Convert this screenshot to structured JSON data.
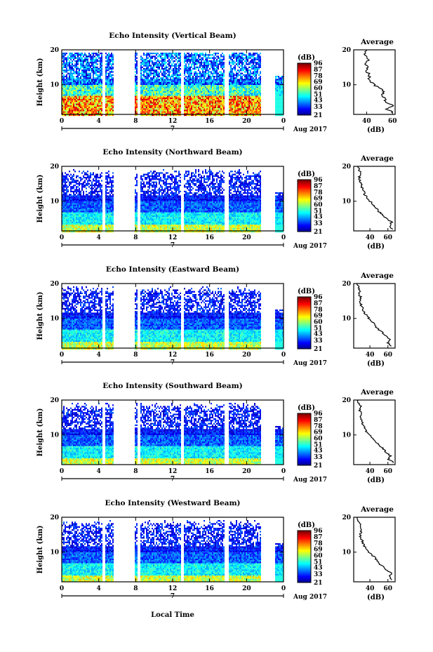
{
  "chart_data": {
    "type": "heatmap",
    "xlabel": "Local Time",
    "date_label": "Aug 2017",
    "day_marker": "7",
    "x_ticks": [
      "0",
      "4",
      "8",
      "12",
      "16",
      "20",
      "0"
    ],
    "xlim": [
      0,
      24
    ],
    "ylabel": "Height (km)",
    "y_ticks": [
      "10",
      "20"
    ],
    "ylim": [
      1.5,
      20
    ],
    "colorbar": {
      "unit_label": "(dB)",
      "ticks": [
        "96",
        "87",
        "78",
        "69",
        "60",
        "51",
        "43",
        "33",
        "21"
      ],
      "tick_values": [
        96,
        87,
        78,
        69,
        60,
        51,
        43,
        33,
        21
      ],
      "range": [
        21,
        96
      ],
      "colormap": "jet"
    },
    "data_gaps_hours": [
      [
        4.3,
        4.6
      ],
      [
        5.6,
        7.8
      ],
      [
        8.2,
        8.5
      ],
      [
        12.8,
        13.1
      ],
      [
        17.5,
        18.0
      ],
      [
        21.5,
        23.0
      ]
    ],
    "profile_title": "Average",
    "profile_xlabel": "(dB)",
    "panels": [
      {
        "title": "Echo Intensity (Vertical Beam)",
        "profile_x_ticks": [
          "40",
          "60"
        ],
        "profile_xlim": [
          30,
          62
        ],
        "profile_x_tick_values": [
          40,
          60
        ],
        "profile_y_ticks": [
          "10",
          "20"
        ],
        "profile": {
          "heights_km": [
            2,
            3,
            4,
            5,
            6,
            7,
            8,
            9,
            10,
            11,
            12,
            13,
            14,
            15,
            16,
            17,
            18,
            19,
            20
          ],
          "mean_db": [
            60,
            56,
            61,
            54,
            55,
            52,
            53,
            50,
            46,
            43,
            42,
            42,
            40,
            41,
            39,
            41,
            39,
            38,
            40
          ]
        }
      },
      {
        "title": "Echo Intensity (Northward Beam)",
        "profile_x_ticks": [
          "40",
          "60"
        ],
        "profile_xlim": [
          22,
          68
        ],
        "profile_x_tick_values": [
          40,
          60
        ],
        "profile_y_ticks": [
          "10",
          "20"
        ],
        "profile": {
          "heights_km": [
            2,
            3,
            4,
            5,
            6,
            7,
            8,
            9,
            10,
            11,
            12,
            13,
            14,
            15,
            16,
            17,
            18,
            19,
            20
          ],
          "mean_db": [
            65,
            62,
            64,
            58,
            55,
            50,
            47,
            44,
            40,
            37,
            34,
            33,
            31,
            30,
            29,
            28,
            30,
            28,
            26
          ]
        }
      },
      {
        "title": "Echo Intensity (Eastward Beam)",
        "profile_x_ticks": [
          "40",
          "60"
        ],
        "profile_xlim": [
          22,
          68
        ],
        "profile_x_tick_values": [
          40,
          60
        ],
        "profile_y_ticks": [
          "10",
          "20"
        ],
        "profile": {
          "heights_km": [
            2,
            3,
            4,
            5,
            6,
            7,
            8,
            9,
            10,
            11,
            12,
            13,
            14,
            15,
            16,
            17,
            18,
            19,
            20
          ],
          "mean_db": [
            64,
            60,
            63,
            57,
            54,
            49,
            46,
            43,
            39,
            36,
            33,
            32,
            30,
            29,
            30,
            28,
            29,
            27,
            26
          ]
        }
      },
      {
        "title": "Echo Intensity (Southward Beam)",
        "profile_x_ticks": [
          "40",
          "60"
        ],
        "profile_xlim": [
          22,
          68
        ],
        "profile_x_tick_values": [
          40,
          60
        ],
        "profile_y_ticks": [
          "10",
          "20"
        ],
        "profile": {
          "heights_km": [
            2,
            3,
            4,
            5,
            6,
            7,
            8,
            9,
            10,
            11,
            12,
            13,
            14,
            15,
            16,
            17,
            18,
            19,
            20
          ],
          "mean_db": [
            66,
            61,
            63,
            58,
            55,
            50,
            47,
            44,
            40,
            36,
            34,
            32,
            31,
            30,
            31,
            29,
            30,
            28,
            27
          ]
        }
      },
      {
        "title": "Echo Intensity (Westward Beam)",
        "profile_x_ticks": [
          "40",
          "60"
        ],
        "profile_xlim": [
          22,
          68
        ],
        "profile_x_tick_values": [
          40,
          60
        ],
        "profile_y_ticks": [
          "10",
          "20"
        ],
        "profile": {
          "heights_km": [
            2,
            3,
            4,
            5,
            6,
            7,
            8,
            9,
            10,
            11,
            12,
            13,
            14,
            15,
            16,
            17,
            18,
            19,
            20
          ],
          "mean_db": [
            65,
            61,
            64,
            57,
            54,
            49,
            47,
            43,
            39,
            36,
            33,
            32,
            30,
            29,
            30,
            29,
            30,
            27,
            26
          ]
        }
      }
    ]
  }
}
